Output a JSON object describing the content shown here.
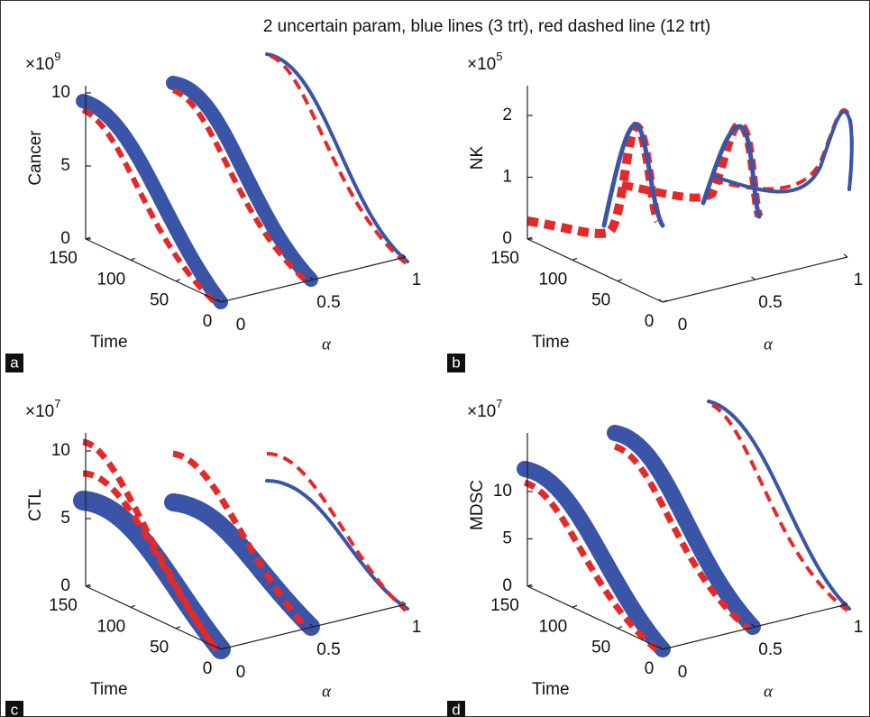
{
  "title": "2 uncertain param, blue lines (3 trt), red dashed line (12 trt)",
  "panels": [
    {
      "letter": "a",
      "z_label": "Cancer",
      "exponent_base": "×10",
      "exponent_power": "9",
      "z_ticks": [
        10,
        5,
        0
      ],
      "time_ticks": [
        150,
        100,
        50,
        0
      ],
      "x_label": "Time",
      "alpha_ticks": [
        0,
        0.5,
        1
      ],
      "alpha_label": "α"
    },
    {
      "letter": "b",
      "z_label": "NK",
      "exponent_base": "×10",
      "exponent_power": "5",
      "z_ticks": [
        2,
        1,
        0
      ],
      "time_ticks": [
        150,
        100,
        50,
        0
      ],
      "x_label": "Time",
      "alpha_ticks": [
        0,
        0.5,
        1
      ],
      "alpha_label": "α"
    },
    {
      "letter": "c",
      "z_label": "CTL",
      "exponent_base": "×10",
      "exponent_power": "7",
      "z_ticks": [
        10,
        5,
        0
      ],
      "time_ticks": [
        150,
        100,
        50,
        0
      ],
      "x_label": "Time",
      "alpha_ticks": [
        0,
        0.5,
        1
      ],
      "alpha_label": "α"
    },
    {
      "letter": "d",
      "z_label": "MDSC",
      "exponent_base": "×10",
      "exponent_power": "7",
      "z_ticks": [
        10,
        5,
        0
      ],
      "time_ticks": [
        150,
        100,
        50,
        0
      ],
      "x_label": "Time",
      "alpha_ticks": [
        0,
        0.5,
        1
      ],
      "alpha_label": "α"
    }
  ]
}
